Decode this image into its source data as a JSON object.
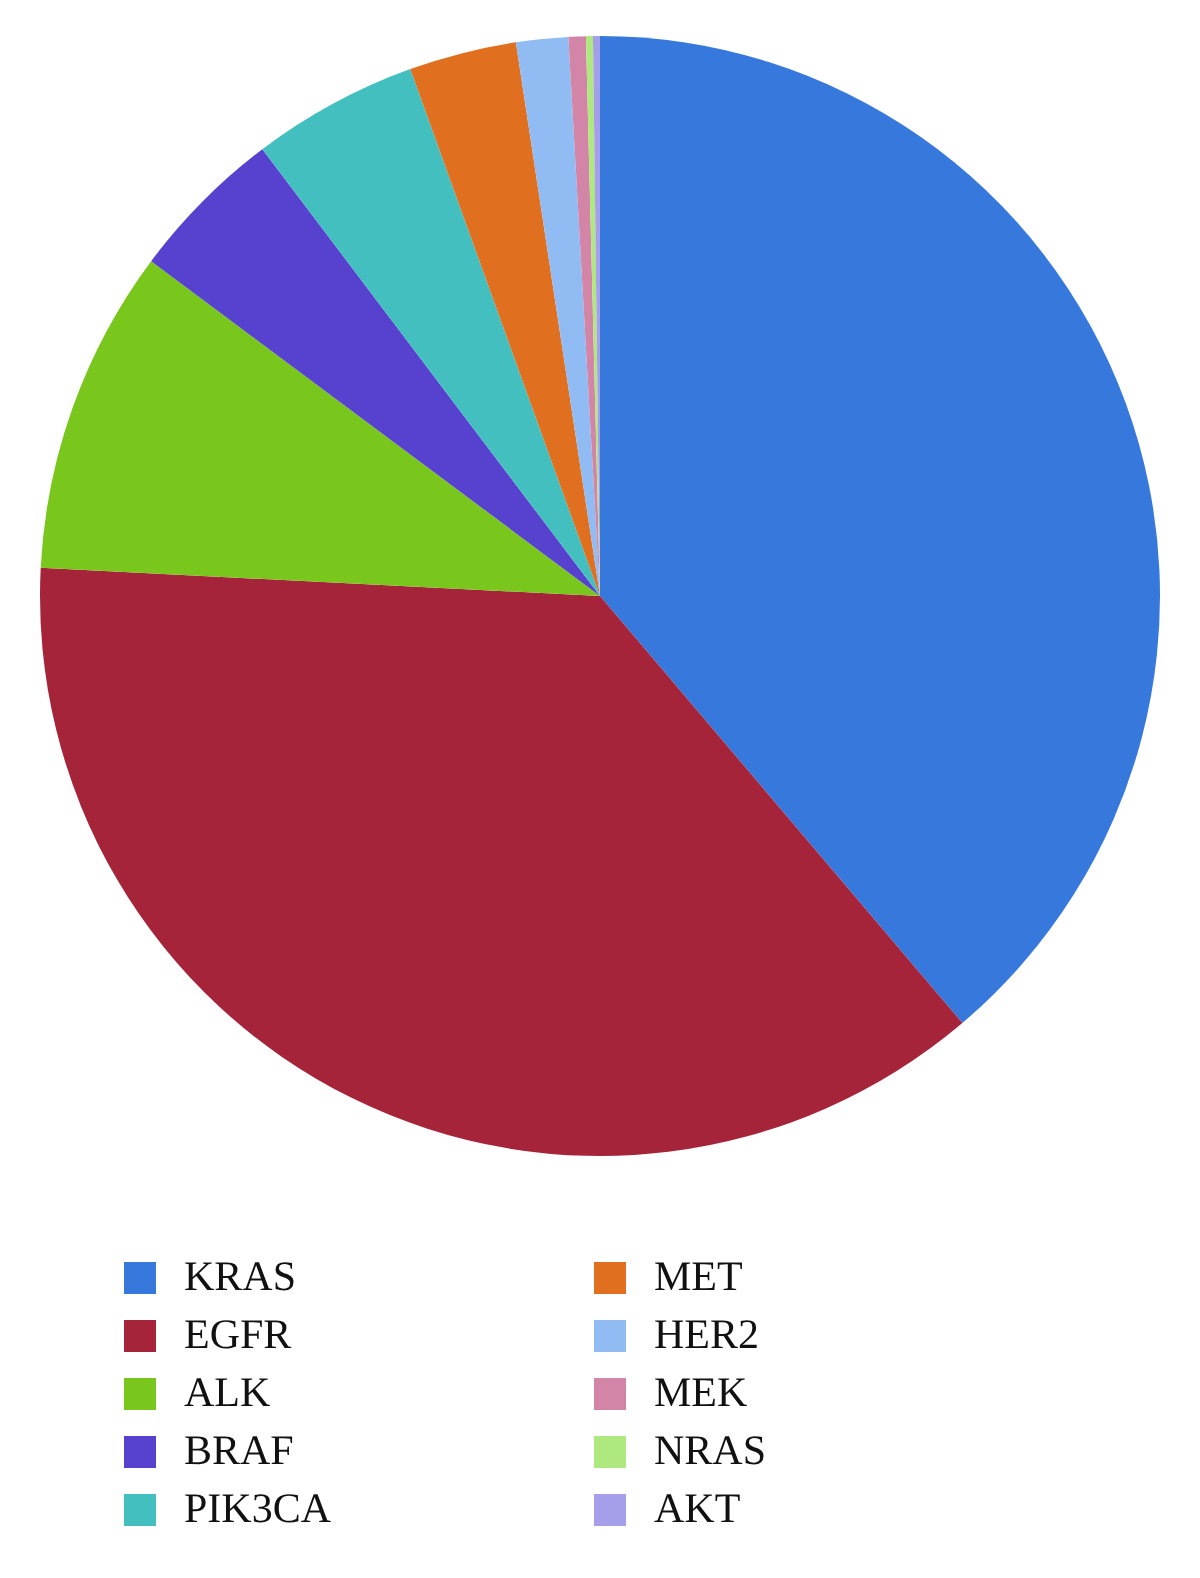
{
  "chart_data": {
    "type": "pie",
    "categories": [
      "KRAS",
      "EGFR",
      "ALK",
      "BRAF",
      "PIK3CA",
      "MET",
      "HER2",
      "MEK",
      "NRAS",
      "AKT"
    ],
    "values": [
      38.8,
      37.0,
      9.4,
      4.5,
      4.8,
      3.1,
      1.5,
      0.5,
      0.2,
      0.2
    ],
    "colors": [
      "#3778dd",
      "#a6243a",
      "#79c71d",
      "#5642cf",
      "#43bfc0",
      "#e0701f",
      "#90bbf3",
      "#d285a6",
      "#aee87e",
      "#a59ee8"
    ],
    "legend": "bottom"
  }
}
